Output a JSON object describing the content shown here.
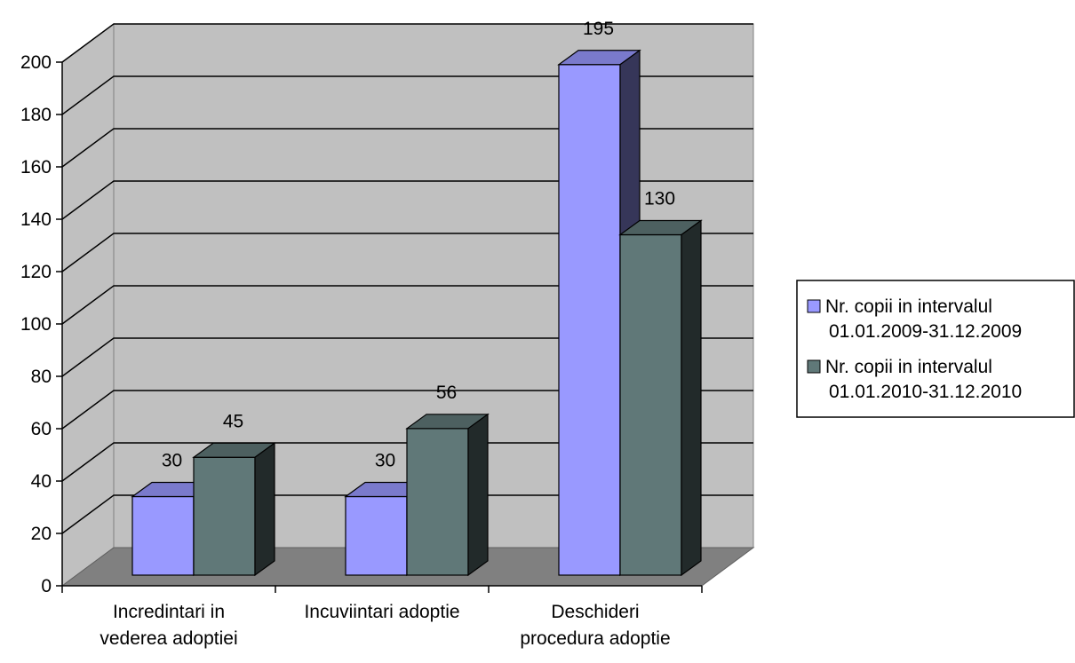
{
  "chart_data": {
    "type": "bar",
    "categories": [
      [
        "Incredintari in",
        "vederea adoptiei"
      ],
      [
        "Incuviintari adoptie"
      ],
      [
        "Deschideri",
        "procedura adoptie"
      ]
    ],
    "series": [
      {
        "name": [
          "Nr. copii in intervalul",
          "01.01.2009-31.12.2009"
        ],
        "values": [
          30,
          30,
          195
        ],
        "color": "#9999ff"
      },
      {
        "name": [
          "Nr. copii in intervalul",
          "01.01.2010-31.12.2010"
        ],
        "values": [
          45,
          56,
          130
        ],
        "color": "#607878"
      }
    ],
    "ylim": [
      0,
      200
    ],
    "yticks": [
      0,
      20,
      40,
      60,
      80,
      100,
      120,
      140,
      160,
      180,
      200
    ],
    "grid": true,
    "legend": "right",
    "three_d": true,
    "title": "",
    "xlabel": "",
    "ylabel": ""
  }
}
